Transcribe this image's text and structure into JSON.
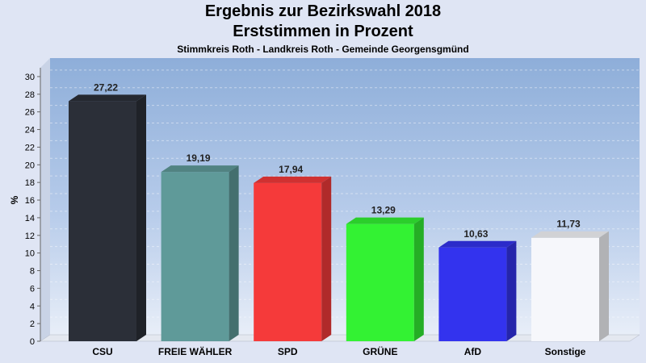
{
  "header": {
    "title": "Ergebnis zur Bezirkswahl 2018",
    "subtitle": "Erststimmen in Prozent",
    "subtitle2": "Stimmkreis Roth - Landkreis Roth - Gemeinde Georgensgmünd"
  },
  "chart_data": {
    "type": "bar",
    "title": "Ergebnis zur Bezirkswahl 2018",
    "xlabel": "",
    "ylabel": "%",
    "ylim": [
      0,
      31
    ],
    "yticks": [
      0,
      2,
      4,
      6,
      8,
      10,
      12,
      14,
      16,
      18,
      20,
      22,
      24,
      26,
      28,
      30
    ],
    "categories": [
      "CSU",
      "FREIE WÄHLER",
      "SPD",
      "GRÜNE",
      "AfD",
      "Sonstige"
    ],
    "values": [
      27.22,
      19.19,
      17.94,
      13.29,
      10.63,
      11.73
    ],
    "value_labels": [
      "27,22",
      "19,19",
      "17,94",
      "13,29",
      "10,63",
      "11,73"
    ],
    "colors": [
      "#2b2f38",
      "#5f9a99",
      "#f53a3a",
      "#33f233",
      "#3333ee",
      "#f6f7fb"
    ],
    "grid": true,
    "legend": "none"
  }
}
